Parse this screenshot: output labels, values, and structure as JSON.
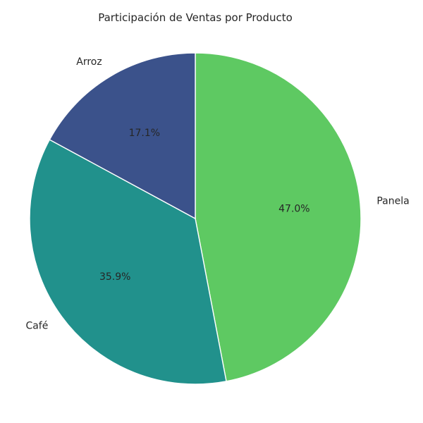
{
  "chart_data": {
    "type": "pie",
    "title": "Participación de Ventas por Producto",
    "start_angle_deg": 90,
    "direction": "clockwise",
    "slices": [
      {
        "label": "Panela",
        "value": 47.0,
        "pct_label": "47.0%",
        "color": "#5ec962"
      },
      {
        "label": "Café",
        "value": 35.9,
        "pct_label": "35.9%",
        "color": "#21918c"
      },
      {
        "label": "Arroz",
        "value": 17.1,
        "pct_label": "17.1%",
        "color": "#3b528b"
      }
    ]
  }
}
